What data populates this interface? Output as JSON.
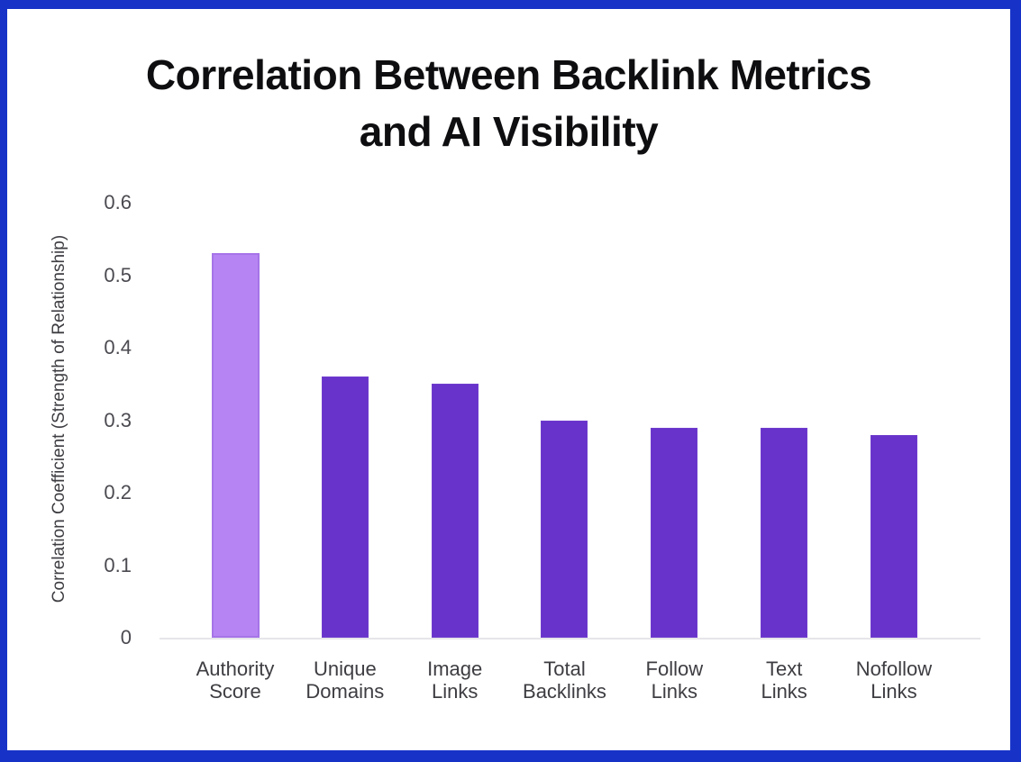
{
  "page": {
    "frame_color": "#1733c7",
    "background_color": "#ffffff"
  },
  "chart_data": {
    "type": "bar",
    "title": "Correlation Between Backlink Metrics and AI Visibility",
    "title_lines": [
      "Correlation Between Backlink Metrics",
      "and AI Visibility"
    ],
    "xlabel": "",
    "ylabel": "Correlation Coefficient (Strength of Relationship)",
    "categories": [
      "Authority Score",
      "Unique Domains",
      "Image Links",
      "Total Backlinks",
      "Follow Links",
      "Text Links",
      "Nofollow Links"
    ],
    "category_lines": [
      [
        "Authority",
        "Score"
      ],
      [
        "Unique",
        "Domains"
      ],
      [
        "Image",
        "Links"
      ],
      [
        "Total",
        "Backlinks"
      ],
      [
        "Follow",
        "Links"
      ],
      [
        "Text",
        "Links"
      ],
      [
        "Nofollow",
        "Links"
      ]
    ],
    "values": [
      0.53,
      0.36,
      0.35,
      0.3,
      0.29,
      0.29,
      0.28
    ],
    "yticks": [
      "0",
      "0.1",
      "0.2",
      "0.3",
      "0.4",
      "0.5",
      "0.6"
    ],
    "ylim": [
      0,
      0.6
    ],
    "grid": false,
    "legend": "none",
    "highlight_index": 0,
    "colors": {
      "highlight_bar": "#b685f3",
      "highlight_bar_border": "#a674e8",
      "bar": "#6733cb",
      "axis_line": "#e6e6ea",
      "tick_text": "#4a4a50",
      "label_text": "#3d3d42",
      "title_text": "#0e0e10"
    }
  }
}
